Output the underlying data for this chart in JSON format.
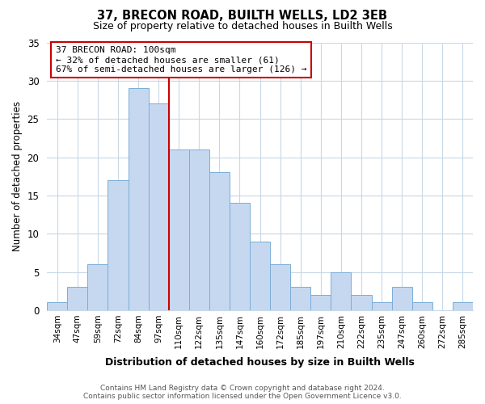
{
  "title": "37, BRECON ROAD, BUILTH WELLS, LD2 3EB",
  "subtitle": "Size of property relative to detached houses in Builth Wells",
  "xlabel": "Distribution of detached houses by size in Builth Wells",
  "ylabel": "Number of detached properties",
  "bin_labels": [
    "34sqm",
    "47sqm",
    "59sqm",
    "72sqm",
    "84sqm",
    "97sqm",
    "110sqm",
    "122sqm",
    "135sqm",
    "147sqm",
    "160sqm",
    "172sqm",
    "185sqm",
    "197sqm",
    "210sqm",
    "222sqm",
    "235sqm",
    "247sqm",
    "260sqm",
    "272sqm",
    "285sqm"
  ],
  "bar_values": [
    1,
    3,
    6,
    17,
    29,
    27,
    21,
    21,
    18,
    14,
    9,
    6,
    3,
    2,
    5,
    2,
    1,
    3,
    1,
    0,
    1
  ],
  "bar_color": "#c5d8f0",
  "bar_edge_color": "#7aaed6",
  "vline_x_index": 5,
  "vline_color": "#cc0000",
  "ylim": [
    0,
    35
  ],
  "yticks": [
    0,
    5,
    10,
    15,
    20,
    25,
    30,
    35
  ],
  "annotation_title": "37 BRECON ROAD: 100sqm",
  "annotation_line1": "← 32% of detached houses are smaller (61)",
  "annotation_line2": "67% of semi-detached houses are larger (126) →",
  "footer_line1": "Contains HM Land Registry data © Crown copyright and database right 2024.",
  "footer_line2": "Contains public sector information licensed under the Open Government Licence v3.0.",
  "background_color": "#ffffff",
  "grid_color": "#c8d8e8"
}
